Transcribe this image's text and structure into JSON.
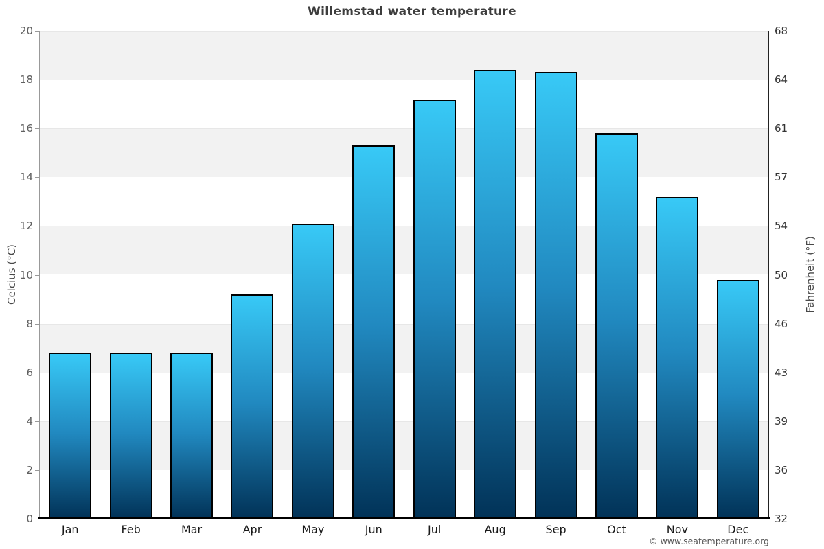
{
  "page": {
    "attribution": "© www.seatemperature.org"
  },
  "chart_data": {
    "type": "bar",
    "title": "Willemstad water temperature",
    "categories": [
      "Jan",
      "Feb",
      "Mar",
      "Apr",
      "May",
      "Jun",
      "Jul",
      "Aug",
      "Sep",
      "Oct",
      "Nov",
      "Dec"
    ],
    "values": [
      6.8,
      6.8,
      6.8,
      9.2,
      12.1,
      15.3,
      17.2,
      18.4,
      18.3,
      15.8,
      13.2,
      9.8
    ],
    "unit": "°C",
    "ylabel_left": "Celcius (°C)",
    "ylabel_right": "Fahrenheit (°F)",
    "ylim": [
      0,
      20
    ],
    "yticks_celsius": [
      0,
      2,
      4,
      6,
      8,
      10,
      12,
      14,
      16,
      18,
      20
    ],
    "yticks_fahrenheit": [
      32,
      36,
      39,
      43,
      46,
      50,
      54,
      57,
      61,
      64,
      68
    ],
    "grid": "alternating horizontal bands every 2°C, light gray on white",
    "legend": "none"
  },
  "colors": {
    "bar_gradient_top": "#38c9f6",
    "bar_gradient_mid": "#2189c0",
    "bar_gradient_bottom": "#013257",
    "bar_border": "#000000",
    "band_alternate": "#f2f2f2",
    "plot_background": "#ffffff",
    "axis_left_line": "#999999",
    "axis_right_line": "#222222",
    "axis_bottom_line": "#000000",
    "tick_label_celsius": "#606060",
    "tick_label_fahrenheit": "#333333",
    "month_label": "#1a1a1a",
    "title_color": "#3d3d3d",
    "attribution_color": "#555555"
  }
}
